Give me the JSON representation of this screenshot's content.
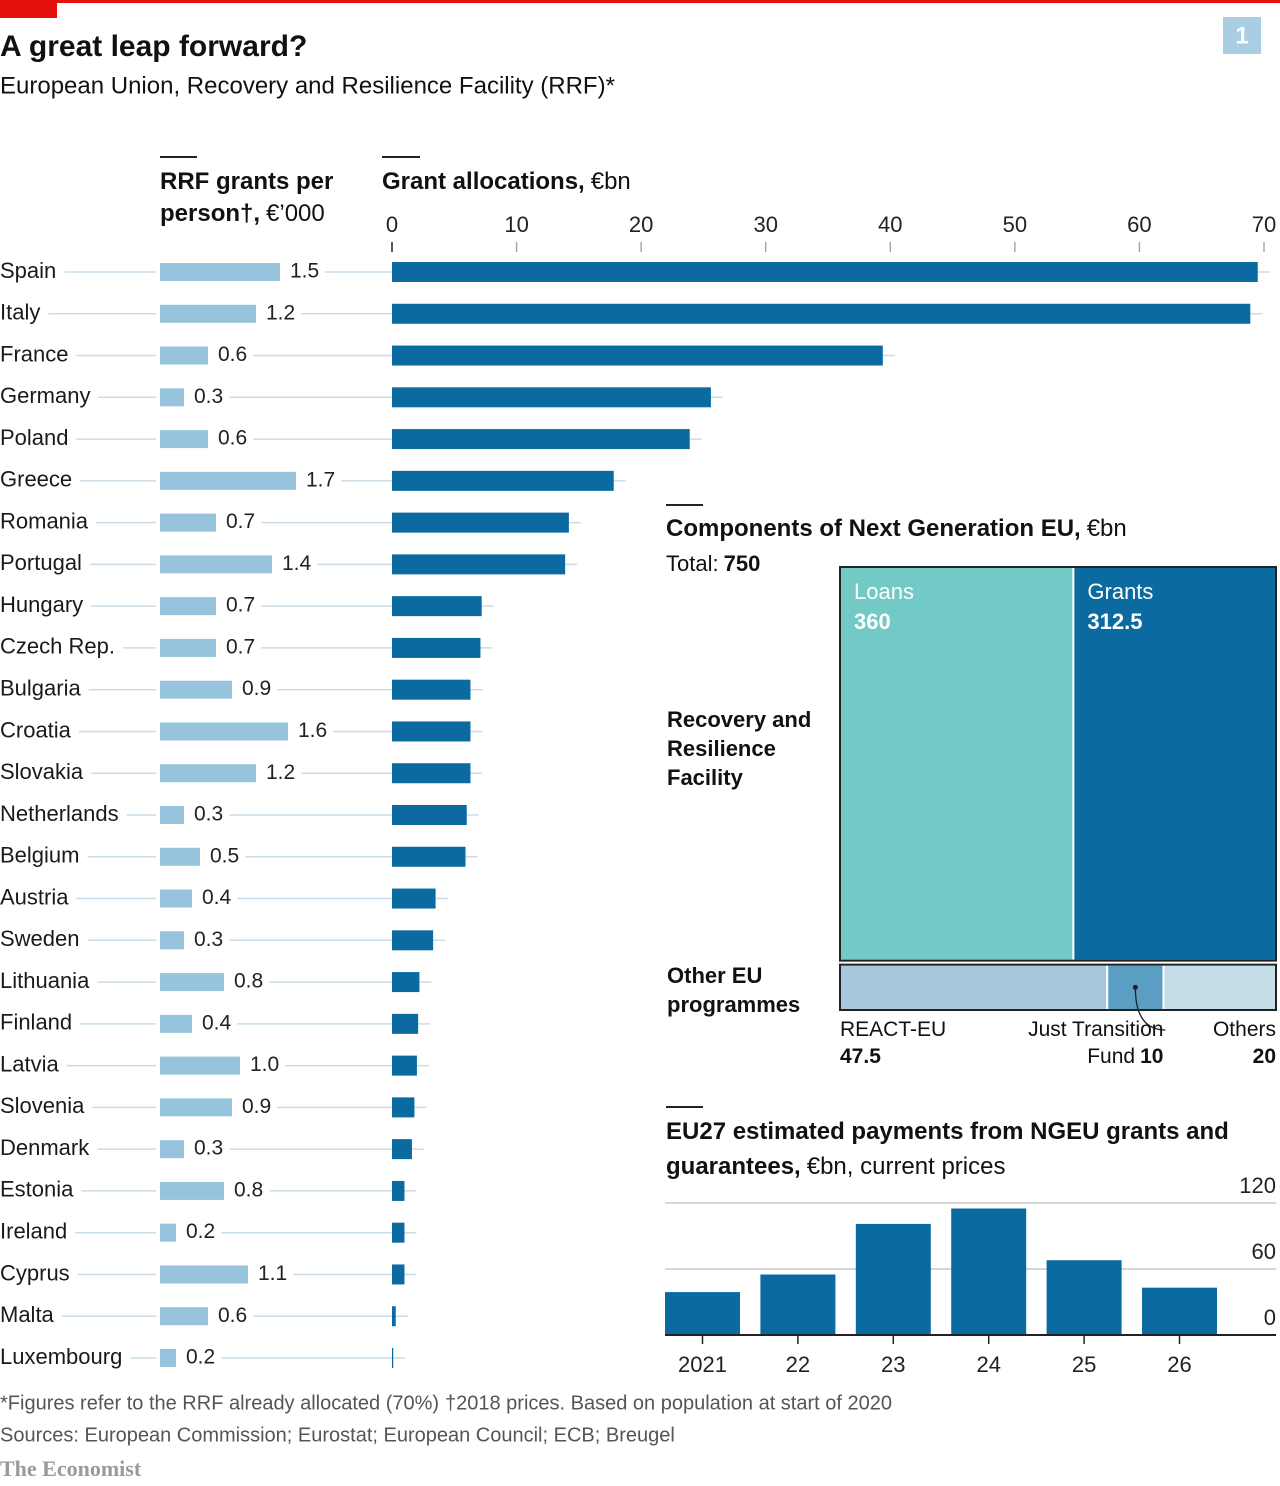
{
  "title": "A great leap forward?",
  "subtitle": "European Union, Recovery and Resilience Facility (RRF)*",
  "page_number": "1",
  "chart_data": [
    {
      "type": "bar",
      "orientation": "horizontal",
      "title": "RRF grants per person†,",
      "unit": "€’000",
      "categories": [
        "Spain",
        "Italy",
        "France",
        "Germany",
        "Poland",
        "Greece",
        "Romania",
        "Portugal",
        "Hungary",
        "Czech Rep.",
        "Bulgaria",
        "Croatia",
        "Slovakia",
        "Netherlands",
        "Belgium",
        "Austria",
        "Sweden",
        "Lithuania",
        "Finland",
        "Latvia",
        "Slovenia",
        "Denmark",
        "Estonia",
        "Ireland",
        "Cyprus",
        "Malta",
        "Luxembourg"
      ],
      "values": [
        1.5,
        1.2,
        0.6,
        0.3,
        0.6,
        1.7,
        0.7,
        1.4,
        0.7,
        0.7,
        0.9,
        1.6,
        1.2,
        0.3,
        0.5,
        0.4,
        0.3,
        0.8,
        0.4,
        1.0,
        0.9,
        0.3,
        0.8,
        0.2,
        1.1,
        0.6,
        0.2
      ],
      "value_labels": [
        "1.5",
        "1.2",
        "0.6",
        "0.3",
        "0.6",
        "1.7",
        "0.7",
        "1.4",
        "0.7",
        "0.7",
        "0.9",
        "1.6",
        "1.2",
        "0.3",
        "0.5",
        "0.4",
        "0.3",
        "0.8",
        "0.4",
        "1.0",
        "0.9",
        "0.3",
        "0.8",
        "0.2",
        "1.1",
        "0.6",
        "0.2"
      ],
      "color": "#97c3dc"
    },
    {
      "type": "bar",
      "orientation": "horizontal",
      "title": "Grant allocations,",
      "unit": "€bn",
      "values": [
        69.5,
        68.9,
        39.4,
        25.6,
        23.9,
        17.8,
        14.2,
        13.9,
        7.2,
        7.1,
        6.3,
        6.3,
        6.3,
        6.0,
        5.9,
        3.5,
        3.3,
        2.2,
        2.1,
        2.0,
        1.8,
        1.6,
        1.0,
        1.0,
        1.0,
        0.3,
        0.1
      ],
      "xlim": [
        0,
        70
      ],
      "xticks": [
        0,
        10,
        20,
        30,
        40,
        50,
        60,
        70
      ],
      "color": "#0b6ba1"
    },
    {
      "type": "treemap",
      "title": "Components of Next Generation EU,",
      "unit": "€bn",
      "total_label": "Total:",
      "total": 750,
      "groups": [
        {
          "name": "Recovery and Resilience Facility",
          "items": [
            {
              "name": "Loans",
              "value": 360,
              "color": "#72c9c5"
            },
            {
              "name": "Grants",
              "value": 312.5,
              "color": "#0b6ba1"
            }
          ]
        },
        {
          "name": "Other EU programmes",
          "items": [
            {
              "name": "REACT-EU",
              "value": 47.5,
              "color": "#a7c8da"
            },
            {
              "name": "Just Transition Fund",
              "value": 10,
              "color": "#5a9ec3"
            },
            {
              "name": "Others",
              "value": 20,
              "color": "#c5dde8"
            }
          ]
        }
      ]
    },
    {
      "type": "bar",
      "title": "EU27 estimated payments from NGEU grants and guarantees,",
      "unit": "€bn, current prices",
      "categories": [
        "2021",
        "22",
        "23",
        "24",
        "25",
        "26"
      ],
      "values": [
        39,
        55,
        101,
        115,
        68,
        43
      ],
      "ylim": [
        0,
        120
      ],
      "yticks": [
        0,
        60,
        120
      ],
      "color": "#0b6ba1",
      "grid": true
    }
  ],
  "footnotes": [
    "*Figures refer to the RRF already allocated (70%)",
    "†2018 prices. Based on population at start of 2020"
  ],
  "sources": "Sources: European Commission; Eurostat; European Council; ECB; Breugel",
  "brand": "The Economist"
}
